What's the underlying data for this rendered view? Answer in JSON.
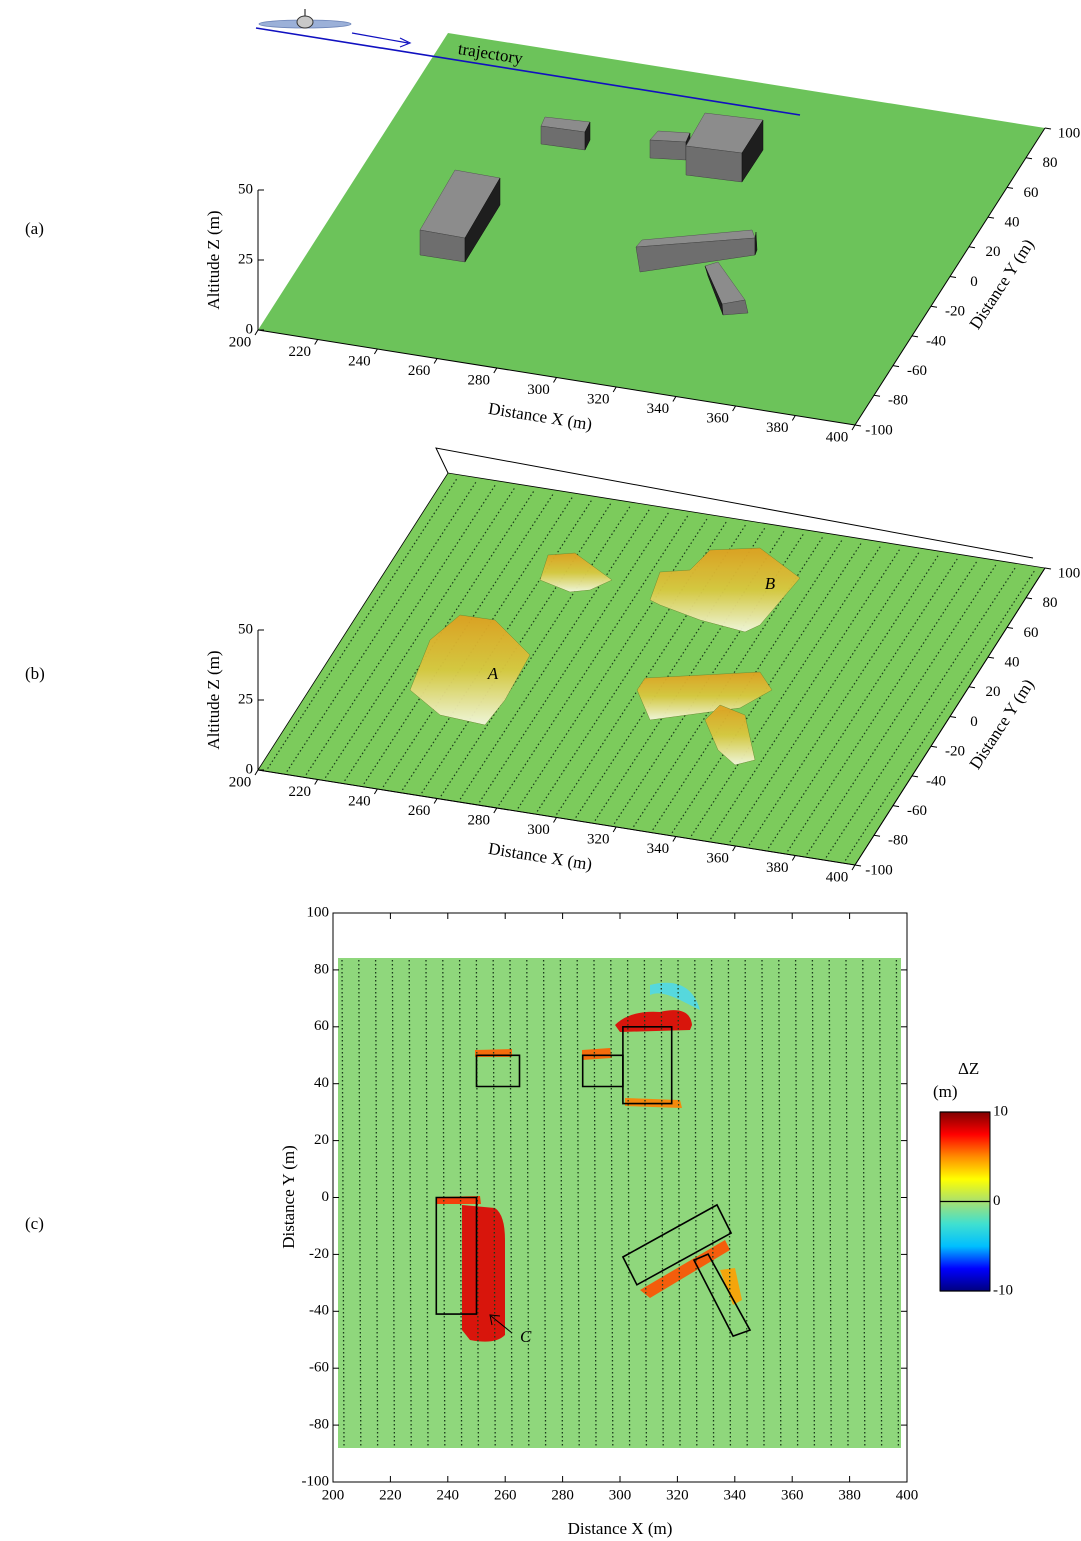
{
  "chart_data": [
    {
      "type": "surface3d",
      "label": "(a)",
      "annotation": "trajectory",
      "xlabel": "Distance X (m)",
      "ylabel": "Distance Y (m)",
      "zlabel": "Altitude Z (m)",
      "xlim": [
        200,
        400
      ],
      "ylim": [
        -100,
        100
      ],
      "zlim": [
        0,
        50
      ],
      "xticks": [
        200,
        220,
        240,
        260,
        280,
        300,
        320,
        340,
        360,
        380,
        400
      ],
      "yticks": [
        -100,
        -80,
        -60,
        -40,
        -20,
        0,
        20,
        40,
        60,
        80,
        100
      ],
      "zticks": [
        0,
        25,
        50
      ],
      "color": "#6cc35a"
    },
    {
      "type": "surface3d",
      "label": "(b)",
      "annotations": [
        "A",
        "B"
      ],
      "xlabel": "Distance X (m)",
      "ylabel": "Distance Y (m)",
      "zlabel": "Altitude Z (m)",
      "xlim": [
        200,
        400
      ],
      "ylim": [
        -100,
        100
      ],
      "zlim": [
        0,
        50
      ],
      "xticks": [
        200,
        220,
        240,
        260,
        280,
        300,
        320,
        340,
        360,
        380,
        400
      ],
      "yticks": [
        -100,
        -80,
        -60,
        -40,
        -20,
        0,
        20,
        40,
        60,
        80,
        100
      ],
      "zticks": [
        0,
        25,
        50
      ],
      "color": "#7ccb5c"
    },
    {
      "type": "heatmap",
      "label": "(c)",
      "annotation": "C",
      "xlabel": "Distance X (m)",
      "ylabel": "Distance Y (m)",
      "xlim": [
        200,
        400
      ],
      "ylim": [
        -100,
        100
      ],
      "xticks": [
        200,
        220,
        240,
        260,
        280,
        300,
        320,
        340,
        360,
        380,
        400
      ],
      "yticks": [
        -100,
        -80,
        -60,
        -40,
        -20,
        0,
        20,
        40,
        60,
        80,
        100
      ],
      "color": "#8fd77c",
      "outlines": [
        {
          "x": [
            250,
            265,
            265,
            250
          ],
          "y": [
            39,
            39,
            50,
            50
          ]
        },
        {
          "x": [
            287,
            301,
            301,
            287
          ],
          "y": [
            39,
            39,
            50,
            50
          ]
        },
        {
          "x": [
            301,
            318,
            318,
            301
          ],
          "y": [
            33,
            33,
            60,
            60
          ]
        },
        {
          "x": [
            236,
            250,
            250,
            236
          ],
          "y": [
            -41,
            -41,
            0,
            0
          ]
        },
        {
          "x": [
            301.0,
            333.8,
            338.7,
            305.9
          ],
          "y": [
            -20.9,
            -2.6,
            -12.5,
            -30.7
          ]
        },
        {
          "x": [
            325.8,
            330.7,
            345.3,
            339.4
          ],
          "y": [
            -22.0,
            -19.9,
            -46.6,
            -48.7
          ]
        }
      ],
      "colorbar": {
        "title": "ΔZ",
        "unit": "(m)",
        "lim": [
          -10,
          10
        ],
        "ticks": [
          -10,
          0,
          10
        ],
        "colors": [
          "#00007f",
          "#0000ff",
          "#00bfff",
          "#40e0d0",
          "#a8e070",
          "#ffff00",
          "#ff8c00",
          "#ff0000",
          "#7f0000"
        ]
      }
    }
  ]
}
